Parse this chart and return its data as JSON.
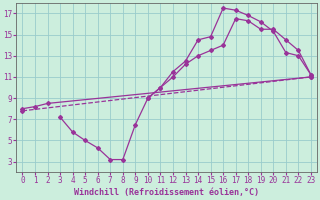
{
  "title": "",
  "xlabel": "Windchill (Refroidissement éolien,°C)",
  "ylabel": "",
  "bg_color": "#cceedd",
  "grid_color": "#99cccc",
  "line_color": "#993399",
  "marker": "D",
  "markersize": 2.0,
  "linewidth": 0.9,
  "xlim": [
    -0.5,
    23.5
  ],
  "ylim": [
    2.0,
    18.0
  ],
  "xticks": [
    0,
    1,
    2,
    3,
    4,
    5,
    6,
    7,
    8,
    9,
    10,
    11,
    12,
    13,
    14,
    15,
    16,
    17,
    18,
    19,
    20,
    21,
    22,
    23
  ],
  "yticks": [
    3,
    5,
    7,
    9,
    11,
    13,
    15,
    17
  ],
  "series1_x": [
    0,
    1,
    2,
    23
  ],
  "series1_y": [
    8.0,
    8.2,
    8.5,
    11.0
  ],
  "series2_x": [
    0,
    23
  ],
  "series2_y": [
    7.8,
    11.0
  ],
  "series3_x": [
    3,
    4,
    5,
    6,
    7,
    8,
    9,
    10,
    11,
    12,
    13,
    14,
    15,
    16,
    17,
    18,
    19,
    20,
    21,
    22,
    23
  ],
  "series3_y": [
    7.2,
    5.8,
    5.0,
    4.3,
    3.2,
    3.2,
    6.5,
    9.0,
    10.0,
    11.5,
    12.5,
    14.5,
    14.8,
    17.5,
    17.3,
    16.8,
    16.2,
    15.3,
    13.3,
    13.0,
    11.2
  ],
  "series4_x": [
    10,
    11,
    12,
    13,
    14,
    15,
    16,
    17,
    18,
    19,
    20,
    21,
    22,
    23
  ],
  "series4_y": [
    9.0,
    10.0,
    11.0,
    12.2,
    13.0,
    13.5,
    14.0,
    16.5,
    16.3,
    15.5,
    15.5,
    14.5,
    13.5,
    11.2
  ],
  "tick_fontsize": 5.5,
  "label_fontsize": 6.0
}
